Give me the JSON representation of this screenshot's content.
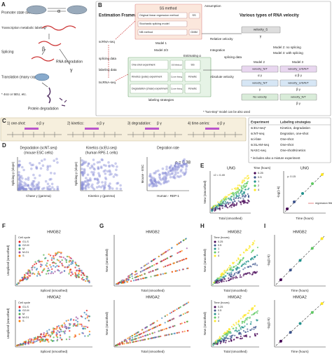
{
  "a": {
    "label": "A",
    "promoter": "Promoter state switch",
    "labeling": "Transcription metabolic labeling*",
    "splicing": "Splicing",
    "rna_degradation": "RNA degradation",
    "translation": "Translation (many copies)",
    "footnote": "* 4sU or 5EU, etc.",
    "protein_degradation": "Protein degradation",
    "alpha": "α",
    "beta": "β",
    "gamma": "γ"
  },
  "b": {
    "label": "B",
    "title": "Estimation Framework",
    "ss_method": "SS method",
    "assumption": "Assumption",
    "methods": [
      "Original linear regression method",
      "Stochastic splicing model",
      "NB method"
    ],
    "ss": "SS",
    "gmm": "GMM",
    "model1": "Model 1",
    "relative_velocity": "Relative velocity",
    "velocity_types_title": "Various types of RNA velocity",
    "velocity_s": "velocity_S",
    "velocity_s_params": "γ",
    "models_note": [
      "Model 2: no splicing",
      "Model 3: with splicing"
    ],
    "model23": "Model 2/3",
    "scrna": "scRNA-seq",
    "splicing_data": "splicing data",
    "labeling_data": "labeling data",
    "tscrna": "tscRNA-seq",
    "estimating": "Estimating α",
    "labeling_strategies": "labeling strategies",
    "experiments": [
      "One-shot experiment",
      "Kinetics (pulse) experiment",
      "Degradation (chase) experiment"
    ],
    "fitting": [
      "SS Method",
      "Curve fitting",
      "Curve fitting"
    ],
    "assumptions": [
      "SS",
      "Kinetic",
      "Kinetic"
    ],
    "absolute_velocity": "Absolute velocity",
    "integration": "Integration",
    "splicing_data_2": "splicing data",
    "table": {
      "header": [
        "Model 2",
        "Model 3"
      ],
      "rows": [
        [
          "velocity_N/T",
          "velocity_U/S/N/T"
        ],
        [
          "velocity_N/T",
          "velocity_U/S/N/T"
        ],
        [
          "No velocity",
          "velocity_N/T"
        ]
      ],
      "params": [
        [
          "α γ",
          "α β γ"
        ],
        [
          "γ",
          "β γ"
        ],
        [
          "β γ"
        ]
      ]
    },
    "footnote": "* \"two-step\" model can be also used"
  },
  "c": {
    "label": "C",
    "experiments": [
      "1) one-shot:",
      "2) kinetics:",
      "3) degradation:",
      "4) time-series:"
    ],
    "greek": [
      "α β γ",
      "α β γ",
      "β γ",
      "α β γ"
    ],
    "table": {
      "header": [
        "Experiment",
        "Labeling strategies"
      ],
      "rows": [
        [
          "scEU-seq*",
          "Kinetics, degradation"
        ],
        [
          "scNT-seq",
          "Degration, one-shot"
        ],
        [
          "sci-fate",
          "One-shot"
        ],
        [
          "scSLAM-seq",
          "One-shot"
        ],
        [
          "NASC-seq",
          "One-shot/Kinetics"
        ]
      ],
      "footnote": "* includes also a mixture experiment"
    }
  },
  "d": {
    "label": "D",
    "plots": [
      {
        "title": "Degradation (scNT-seq)",
        "subtitle": "(mouse ESC cells)",
        "ylabel": "Splicing γ (slope)",
        "xlabel": "Chase γ (gamma)"
      },
      {
        "title": "Kinetics (scEU-seq)",
        "subtitle": "(human RPE-1 cells)",
        "ylabel": "Splicing γ (slope)",
        "xlabel": "Kinetics γ (gamma)"
      },
      {
        "title": "Degration rate",
        "ylabel": "Mouse - ESC",
        "xlabel": "Human - REP-1",
        "annotation": "ρ = 0.38"
      }
    ]
  },
  "e": {
    "label": "E",
    "left": {
      "title": "UNG",
      "ylabel": "New (smoothed)",
      "xlabel": "Total (smoothed)",
      "legend_title": "Time (hours)",
      "legend": [
        "0.25",
        "0.5",
        "1",
        "2",
        "4"
      ],
      "annotation": "r2 = 0.49"
    },
    "right": {
      "title": "UNG",
      "ylabel": "-log(1-k)",
      "xlabel": "Time (hours)",
      "legend": "regression fitting",
      "annotation": "γ: 0.15"
    }
  },
  "f": {
    "label": "F",
    "titles": [
      "HMGB2",
      "HMGA2"
    ],
    "ylabel": "Unspliced (smoothed)",
    "xlabel": "Spliced (smoothed)",
    "legend_title": "Cell cycle",
    "legend": [
      "G1-S",
      "G2-M",
      "M",
      "M-G1",
      "S"
    ],
    "colors": [
      "#e41a1c",
      "#377eb8",
      "#4daf4a",
      "#984ea3",
      "#ff7f00"
    ]
  },
  "g": {
    "label": "G",
    "titles": [
      "HMGB2",
      "HMGA2"
    ],
    "ylabel": "New (smoothed)",
    "xlabel": "Total (smoothed)"
  },
  "h": {
    "label": "H",
    "titles": [
      "HMGB2",
      "HMGA2"
    ],
    "ylabel": "New (smoothed)",
    "xlabel": "Total (smoothed)",
    "legend_title": "Time (hours)",
    "legend": [
      "0.25",
      "0.5",
      "1",
      "2",
      "4"
    ],
    "colors": [
      "#440154",
      "#3b528b",
      "#21918c",
      "#5ec962",
      "#fde725"
    ]
  },
  "i": {
    "label": "I",
    "titles": [
      "HMGB2",
      "HMGA2"
    ],
    "ylabel": "-log(1-k)",
    "xlabel": "Time (hours)"
  }
}
